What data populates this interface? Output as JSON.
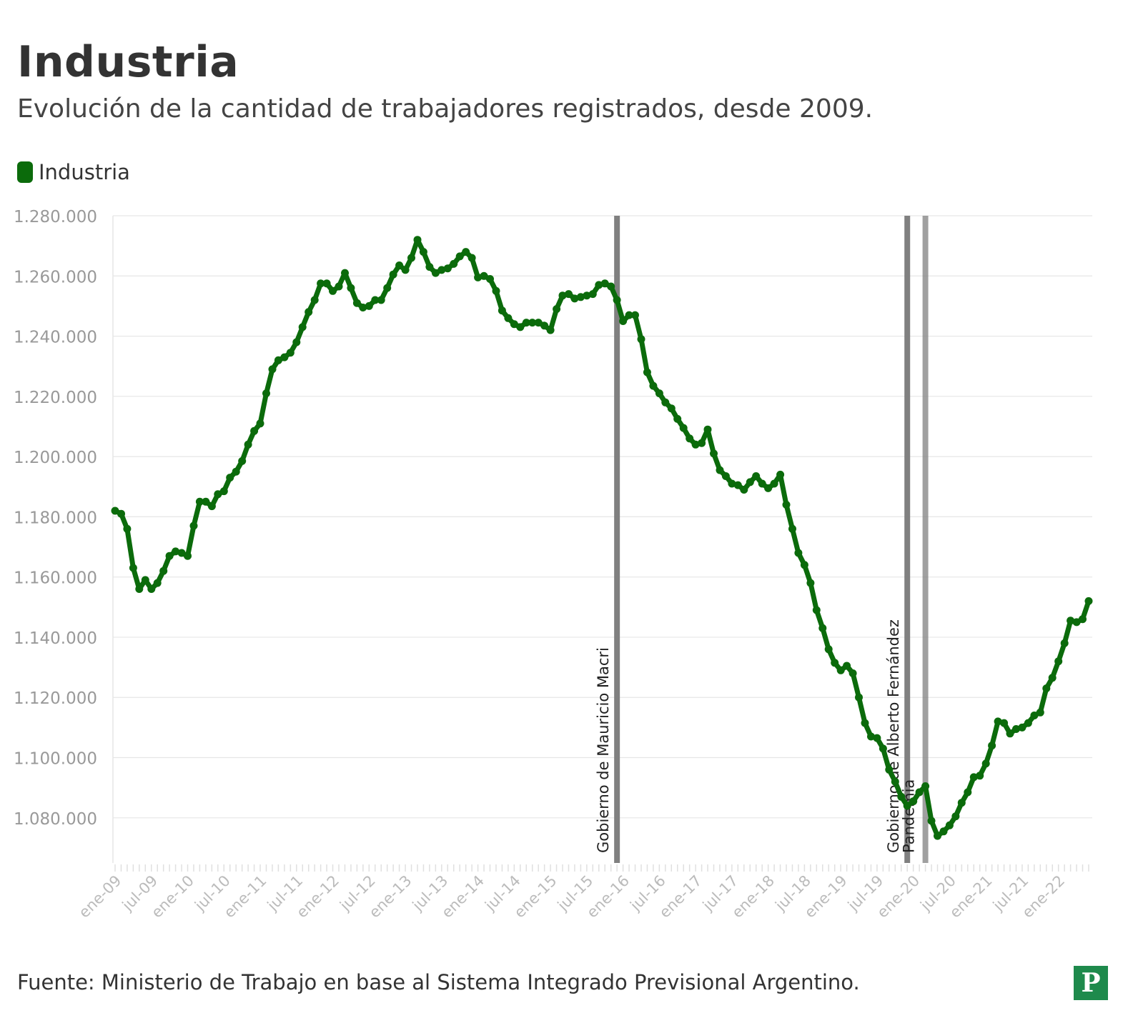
{
  "title": "Industria",
  "subtitle": "Evolución de la cantidad de trabajadores registrados, desde 2009.",
  "source": "Fuente: Ministerio de Trabajo en base al Sistema Integrado Previsional Argentino.",
  "logo_letter": "P",
  "colors": {
    "series": "#0b6b0b",
    "annotation": "#808080",
    "grid": "#e6e6e6",
    "tick_text": "#999999"
  },
  "chart_data": {
    "type": "line",
    "title": "Industria",
    "subtitle": "Evolución de la cantidad de trabajadores registrados, desde 2009.",
    "xlabel": "",
    "ylabel": "",
    "ylim": [
      1065000,
      1280000
    ],
    "yticks": [
      1080000,
      1100000,
      1120000,
      1140000,
      1160000,
      1180000,
      1200000,
      1220000,
      1240000,
      1260000,
      1280000
    ],
    "ytick_labels": [
      "1.080.000",
      "1.100.000",
      "1.120.000",
      "1.140.000",
      "1.160.000",
      "1.180.000",
      "1.200.000",
      "1.220.000",
      "1.240.000",
      "1.260.000",
      "1.280.000"
    ],
    "x_start": "2009-01",
    "x_end": "2022-06",
    "xtick_labels": [
      "ene-09",
      "jul-09",
      "ene-10",
      "jul-10",
      "ene-11",
      "jul-11",
      "ene-12",
      "jul-12",
      "ene-13",
      "jul-13",
      "ene-14",
      "jul-14",
      "ene-15",
      "jul-15",
      "ene-16",
      "jul-16",
      "ene-17",
      "jul-17",
      "ene-18",
      "jul-18",
      "ene-19",
      "jul-19",
      "ene-20",
      "jul-20",
      "ene-21",
      "jul-21",
      "ene-22"
    ],
    "grid": true,
    "legend": "top-left",
    "series": [
      {
        "name": "Industria",
        "color": "#0b6b0b",
        "x": [
          "2009-01",
          "2009-02",
          "2009-03",
          "2009-04",
          "2009-05",
          "2009-06",
          "2009-07",
          "2009-08",
          "2009-09",
          "2009-10",
          "2009-11",
          "2009-12",
          "2010-01",
          "2010-02",
          "2010-03",
          "2010-04",
          "2010-05",
          "2010-06",
          "2010-07",
          "2010-08",
          "2010-09",
          "2010-10",
          "2010-11",
          "2010-12",
          "2011-01",
          "2011-02",
          "2011-03",
          "2011-04",
          "2011-05",
          "2011-06",
          "2011-07",
          "2011-08",
          "2011-09",
          "2011-10",
          "2011-11",
          "2011-12",
          "2012-01",
          "2012-02",
          "2012-03",
          "2012-04",
          "2012-05",
          "2012-06",
          "2012-07",
          "2012-08",
          "2012-09",
          "2012-10",
          "2012-11",
          "2012-12",
          "2013-01",
          "2013-02",
          "2013-03",
          "2013-04",
          "2013-05",
          "2013-06",
          "2013-07",
          "2013-08",
          "2013-09",
          "2013-10",
          "2013-11",
          "2013-12",
          "2014-01",
          "2014-02",
          "2014-03",
          "2014-04",
          "2014-05",
          "2014-06",
          "2014-07",
          "2014-08",
          "2014-09",
          "2014-10",
          "2014-11",
          "2014-12",
          "2015-01",
          "2015-02",
          "2015-03",
          "2015-04",
          "2015-05",
          "2015-06",
          "2015-07",
          "2015-08",
          "2015-09",
          "2015-10",
          "2015-11",
          "2015-12",
          "2016-01",
          "2016-02",
          "2016-03",
          "2016-04",
          "2016-05",
          "2016-06",
          "2016-07",
          "2016-08",
          "2016-09",
          "2016-10",
          "2016-11",
          "2016-12",
          "2017-01",
          "2017-02",
          "2017-03",
          "2017-04",
          "2017-05",
          "2017-06",
          "2017-07",
          "2017-08",
          "2017-09",
          "2017-10",
          "2017-11",
          "2017-12",
          "2018-01",
          "2018-02",
          "2018-03",
          "2018-04",
          "2018-05",
          "2018-06",
          "2018-07",
          "2018-08",
          "2018-09",
          "2018-10",
          "2018-11",
          "2018-12",
          "2019-01",
          "2019-02",
          "2019-03",
          "2019-04",
          "2019-05",
          "2019-06",
          "2019-07",
          "2019-08",
          "2019-09",
          "2019-10",
          "2019-11",
          "2019-12",
          "2020-01",
          "2020-02",
          "2020-03",
          "2020-04",
          "2020-05",
          "2020-06",
          "2020-07",
          "2020-08",
          "2020-09",
          "2020-10",
          "2020-11",
          "2020-12",
          "2021-01",
          "2021-02",
          "2021-03",
          "2021-04",
          "2021-05",
          "2021-06",
          "2021-07",
          "2021-08",
          "2021-09",
          "2021-10",
          "2021-11",
          "2021-12",
          "2022-01",
          "2022-02",
          "2022-03",
          "2022-04",
          "2022-05",
          "2022-06"
        ],
        "values": [
          1182000,
          1181000,
          1176000,
          1163000,
          1156000,
          1159000,
          1156000,
          1158000,
          1162000,
          1167000,
          1168500,
          1168000,
          1167000,
          1177000,
          1185000,
          1185000,
          1183500,
          1187500,
          1188500,
          1193000,
          1195000,
          1198500,
          1204000,
          1208500,
          1211000,
          1221000,
          1229000,
          1232000,
          1233000,
          1234500,
          1238000,
          1243000,
          1248000,
          1252000,
          1257500,
          1257500,
          1255000,
          1256500,
          1261000,
          1256000,
          1251000,
          1249500,
          1250000,
          1252000,
          1252000,
          1256000,
          1260500,
          1263500,
          1262000,
          1266000,
          1272000,
          1268000,
          1263000,
          1261000,
          1262000,
          1262500,
          1264000,
          1266500,
          1268000,
          1266000,
          1259500,
          1260000,
          1259000,
          1255000,
          1248500,
          1246000,
          1244000,
          1243000,
          1244500,
          1244500,
          1244500,
          1243500,
          1242000,
          1249000,
          1253500,
          1254000,
          1252500,
          1253000,
          1253500,
          1254000,
          1257000,
          1257500,
          1256500,
          1252000,
          1245000,
          1247000,
          1247000,
          1239000,
          1228000,
          1223500,
          1221000,
          1218000,
          1216000,
          1212500,
          1209500,
          1206000,
          1204000,
          1204500,
          1209000,
          1201000,
          1195500,
          1193500,
          1191000,
          1190500,
          1189000,
          1191500,
          1193500,
          1191000,
          1189500,
          1191000,
          1194000,
          1184000,
          1176000,
          1168000,
          1164000,
          1158000,
          1149000,
          1143000,
          1136000,
          1131500,
          1129000,
          1130500,
          1128000,
          1120000,
          1111500,
          1107000,
          1106500,
          1103000,
          1096000,
          1092000,
          1087000,
          1084000,
          1085500,
          1088500,
          1090500,
          1079000,
          1074000,
          1075500,
          1077500,
          1080500,
          1085000,
          1088500,
          1093500,
          1094000,
          1098000,
          1104000,
          1112000,
          1111500,
          1108000,
          1109500,
          1110000,
          1111500,
          1114000,
          1115000,
          1123000,
          1126500,
          1132000,
          1138000,
          1145500,
          1145000,
          1146000,
          1152000
        ]
      }
    ],
    "annotations": [
      {
        "x": "2015-12",
        "label": "Gobierno de Mauricio Macri"
      },
      {
        "x": "2019-12",
        "label": "Gobierno de Alberto Fernández"
      },
      {
        "x": "2020-03",
        "label": "Pandemia"
      }
    ]
  }
}
